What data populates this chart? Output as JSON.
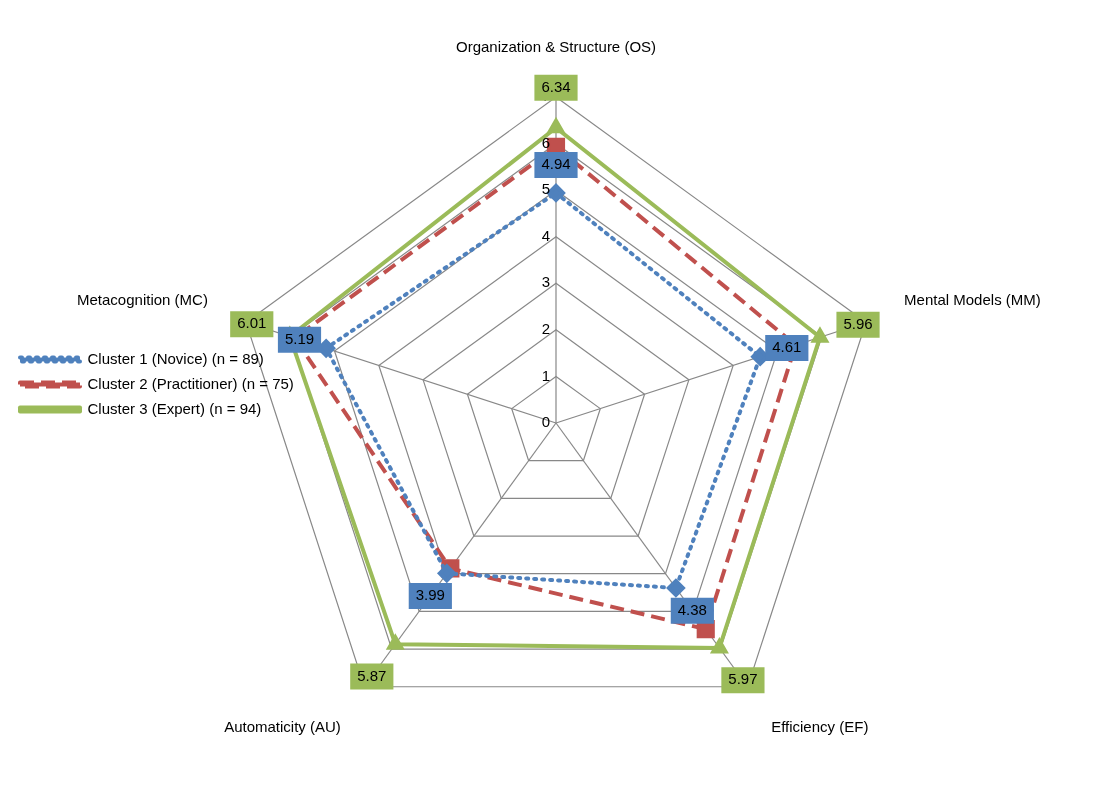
{
  "chart_data": {
    "type": "radar",
    "categories": [
      "Organization & Structure (OS)",
      "Mental Models (MM)",
      "Efficiency (EF)",
      "Automaticity (AU)",
      "Metacognition (MC)"
    ],
    "ylim": [
      0,
      7
    ],
    "yticks": [
      0,
      1,
      2,
      3,
      4,
      5,
      6,
      7
    ],
    "grid": true,
    "legend": "left",
    "series": [
      {
        "name": "Cluster 1 (Novice) (n = 89)",
        "color": "#4f81bd",
        "values": [
          4.94,
          4.61,
          4.38,
          3.99,
          5.19
        ],
        "value_labels": [
          "4.94",
          "4.61",
          "4.38",
          "3.99",
          "5.19"
        ],
        "marker": "diamond",
        "line_style": "dotted"
      },
      {
        "name": "Cluster 2 (Practitioner) (n = 75)",
        "color": "#c0504d",
        "values": [
          5.93,
          5.41,
          5.47,
          3.86,
          5.9
        ],
        "marker": "square",
        "line_style": "dashed"
      },
      {
        "name": "Cluster 3 (Expert) (n = 94)",
        "color": "#9bbb59",
        "values": [
          6.34,
          5.96,
          5.97,
          5.87,
          6.01
        ],
        "value_labels": [
          "6.34",
          "5.96",
          "5.97",
          "5.87",
          "6.01"
        ],
        "marker": "triangle",
        "line_style": "solid"
      }
    ]
  }
}
